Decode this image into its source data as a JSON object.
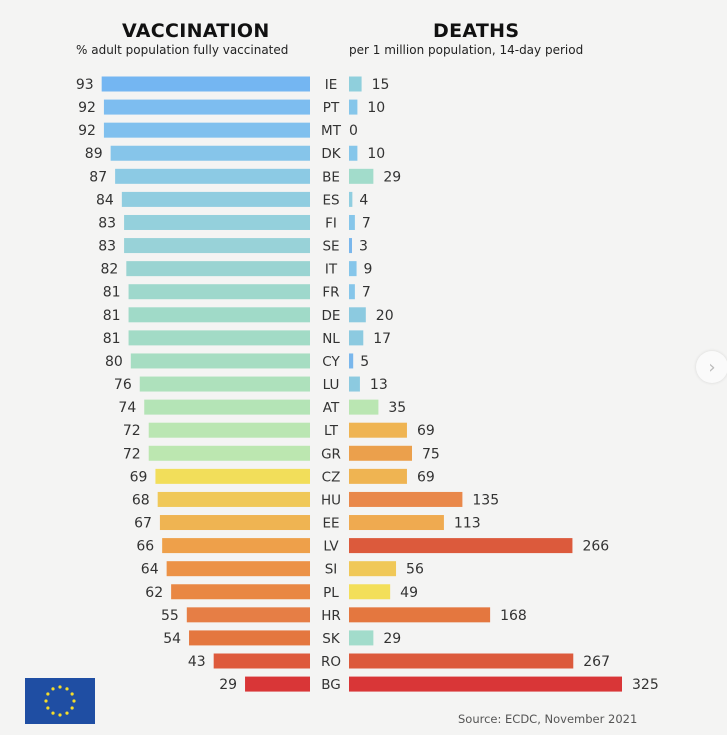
{
  "chart_data": [
    {
      "type": "bar",
      "orientation": "horizontal",
      "title": "VACCINATION",
      "subtitle": "% adult population fully vaccinated",
      "categories": [
        "IE",
        "PT",
        "MT",
        "DK",
        "BE",
        "ES",
        "FI",
        "SE",
        "IT",
        "FR",
        "DE",
        "NL",
        "CY",
        "LU",
        "AT",
        "LT",
        "GR",
        "CZ",
        "HU",
        "EE",
        "LV",
        "SI",
        "PL",
        "HR",
        "SK",
        "RO",
        "BG"
      ],
      "values": [
        93,
        92,
        92,
        89,
        87,
        84,
        83,
        83,
        82,
        81,
        81,
        81,
        80,
        76,
        74,
        72,
        72,
        69,
        68,
        67,
        66,
        64,
        62,
        55,
        54,
        43,
        29
      ],
      "colors": [
        "#74b6f2",
        "#7dbdf0",
        "#80c0ee",
        "#86c5ea",
        "#8ccae4",
        "#90cde0",
        "#94d0dc",
        "#98d2d8",
        "#9ad4d2",
        "#9ed8cc",
        "#a0dac8",
        "#a2dbc6",
        "#a6ddc2",
        "#aee1bc",
        "#b4e4b6",
        "#bae6b2",
        "#bce7b0",
        "#f2de5a",
        "#f0c858",
        "#efb452",
        "#eea04a",
        "#ec9246",
        "#e98743",
        "#e67e45",
        "#e4773f",
        "#de5a3c",
        "#d93637"
      ],
      "xlim": [
        0,
        100
      ],
      "direction": "right-to-left"
    },
    {
      "type": "bar",
      "orientation": "horizontal",
      "title": "DEATHS",
      "subtitle": "per 1 million population, 14-day period",
      "categories": [
        "IE",
        "PT",
        "MT",
        "DK",
        "BE",
        "ES",
        "FI",
        "SE",
        "IT",
        "FR",
        "DE",
        "NL",
        "CY",
        "LU",
        "AT",
        "LT",
        "GR",
        "CZ",
        "HU",
        "EE",
        "LV",
        "SI",
        "PL",
        "HR",
        "SK",
        "RO",
        "BG"
      ],
      "values": [
        15,
        10,
        0,
        10,
        29,
        4,
        7,
        3,
        9,
        7,
        20,
        17,
        5,
        13,
        35,
        69,
        75,
        69,
        135,
        113,
        266,
        56,
        49,
        168,
        29,
        267,
        325
      ],
      "colors": [
        "#8fcfdc",
        "#86c6ea",
        "#86c6ea",
        "#86c6ea",
        "#a2dccb",
        "#90cee0",
        "#86c6ea",
        "#7ab7ec",
        "#86c6ea",
        "#86c6ea",
        "#8ccae0",
        "#8ccae0",
        "#7ab7ec",
        "#8ccae0",
        "#bae6b2",
        "#efb452",
        "#eba04c",
        "#efb452",
        "#e9884a",
        "#efaa50",
        "#dc5a3c",
        "#f0c858",
        "#f3df5a",
        "#e4773f",
        "#a2dccb",
        "#dc5a3c",
        "#d93637"
      ],
      "xlim": [
        0,
        325
      ],
      "direction": "left-to-right"
    }
  ],
  "footer": {
    "source": "Source: ECDC, November 2021",
    "logo": "eu-flag-icon"
  },
  "navigation": {
    "next_icon": "chevron-right-icon",
    "next_glyph": "›"
  }
}
